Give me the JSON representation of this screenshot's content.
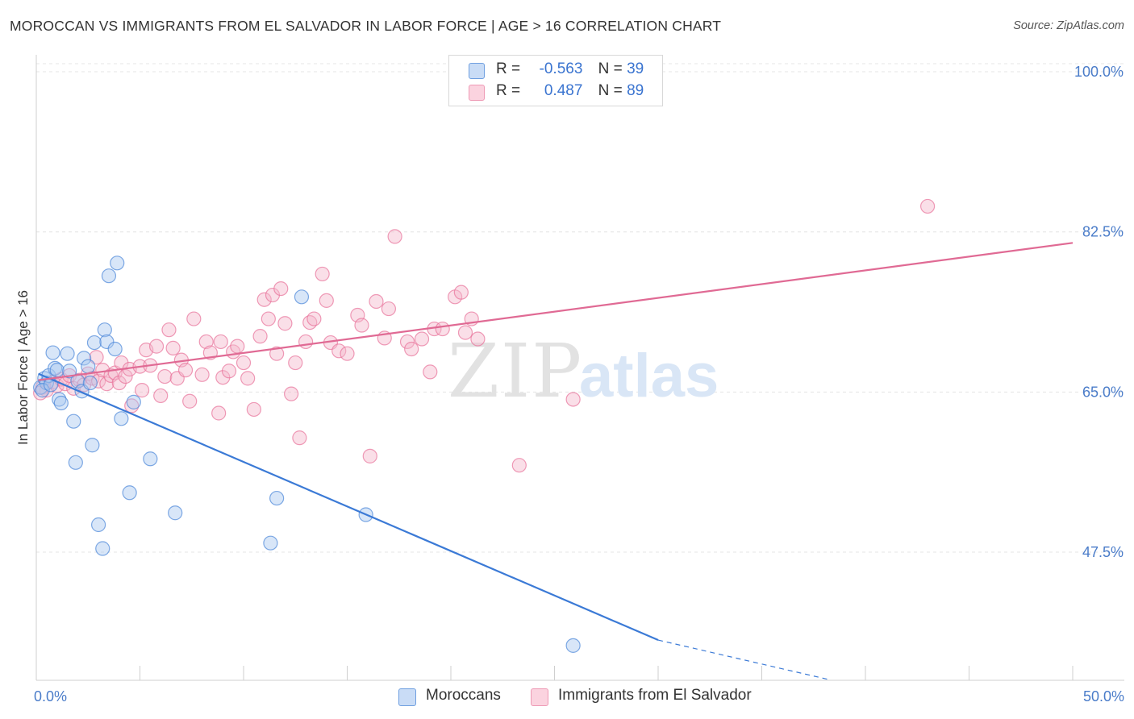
{
  "header": {
    "title": "MOROCCAN VS IMMIGRANTS FROM EL SALVADOR IN LABOR FORCE | AGE > 16 CORRELATION CHART",
    "source": "Source: ZipAtlas.com"
  },
  "watermark": {
    "zip": "ZIP",
    "atlas": "atlas"
  },
  "legend_stats": [
    {
      "r_label": "R =",
      "r_value": "-0.563",
      "n_label": "N =",
      "n_value": "39",
      "color": "#a9c8f0"
    },
    {
      "r_label": "R =",
      "r_value": "0.487",
      "n_label": "N =",
      "n_value": "89",
      "color": "#f5b8cb"
    }
  ],
  "chart_data": {
    "type": "scatter",
    "title": "MOROCCAN VS IMMIGRANTS FROM EL SALVADOR IN LABOR FORCE | AGE > 16 CORRELATION CHART",
    "ylabel": "In Labor Force | Age > 16",
    "xlabel": "",
    "xlim": [
      0,
      50
    ],
    "ylim": [
      33.5,
      101.5
    ],
    "x_tick_labels": [
      "0.0%",
      "50.0%"
    ],
    "y_tick_values": [
      47.5,
      65.0,
      82.5,
      100.0
    ],
    "y_tick_labels": [
      "47.5%",
      "65.0%",
      "82.5%",
      "100.0%"
    ],
    "grid": "horizontal dashed",
    "legend_position": "bottom",
    "series": [
      {
        "name": "Moroccans",
        "color": "#4a86d8",
        "fill": "#a9c8f0",
        "trend": {
          "x": [
            0.1,
            30.0
          ],
          "y": [
            67.0,
            37.9
          ],
          "dash_to": [
            37.9,
            33.6
          ]
        },
        "points": [
          [
            0.2,
            65.5
          ],
          [
            0.4,
            66.5
          ],
          [
            0.5,
            66.0
          ],
          [
            0.6,
            66.8
          ],
          [
            0.3,
            65.2
          ],
          [
            0.7,
            65.8
          ],
          [
            0.8,
            69.3
          ],
          [
            0.9,
            67.6
          ],
          [
            1.0,
            67.4
          ],
          [
            1.1,
            64.2
          ],
          [
            1.2,
            63.8
          ],
          [
            1.5,
            69.2
          ],
          [
            1.6,
            67.3
          ],
          [
            1.8,
            61.8
          ],
          [
            1.9,
            57.3
          ],
          [
            2.0,
            66.2
          ],
          [
            2.2,
            65.1
          ],
          [
            2.3,
            68.7
          ],
          [
            2.5,
            67.8
          ],
          [
            2.6,
            66.0
          ],
          [
            2.7,
            59.2
          ],
          [
            2.8,
            70.4
          ],
          [
            3.0,
            50.5
          ],
          [
            3.2,
            47.9
          ],
          [
            3.3,
            71.8
          ],
          [
            3.4,
            70.5
          ],
          [
            3.5,
            77.7
          ],
          [
            3.8,
            69.7
          ],
          [
            3.9,
            79.1
          ],
          [
            4.1,
            62.1
          ],
          [
            4.5,
            54.0
          ],
          [
            4.7,
            63.9
          ],
          [
            5.5,
            57.7
          ],
          [
            6.7,
            51.8
          ],
          [
            11.3,
            48.5
          ],
          [
            11.6,
            53.4
          ],
          [
            12.8,
            75.4
          ],
          [
            15.9,
            51.6
          ],
          [
            25.9,
            37.3
          ]
        ]
      },
      {
        "name": "Immigrants from El Salvador",
        "color": "#e8729a",
        "fill": "#f5b8cb",
        "trend": {
          "x": [
            0.1,
            50.0
          ],
          "y": [
            66.3,
            81.3
          ]
        },
        "points": [
          [
            0.3,
            65.5
          ],
          [
            0.5,
            65.2
          ],
          [
            0.8,
            66.1
          ],
          [
            1.0,
            65.7
          ],
          [
            1.2,
            66.4
          ],
          [
            1.4,
            65.9
          ],
          [
            1.6,
            66.8
          ],
          [
            1.8,
            65.4
          ],
          [
            2.1,
            66.3
          ],
          [
            2.3,
            65.8
          ],
          [
            2.5,
            67.0
          ],
          [
            2.7,
            66.5
          ],
          [
            2.9,
            68.8
          ],
          [
            3.0,
            66.2
          ],
          [
            3.2,
            67.4
          ],
          [
            3.4,
            65.9
          ],
          [
            3.6,
            66.8
          ],
          [
            3.8,
            67.1
          ],
          [
            4.0,
            66.0
          ],
          [
            4.1,
            68.2
          ],
          [
            4.3,
            66.7
          ],
          [
            4.5,
            67.5
          ],
          [
            4.6,
            63.5
          ],
          [
            5.0,
            67.8
          ],
          [
            5.1,
            65.2
          ],
          [
            5.3,
            69.6
          ],
          [
            5.5,
            67.9
          ],
          [
            5.8,
            70.0
          ],
          [
            6.0,
            64.6
          ],
          [
            6.2,
            66.7
          ],
          [
            6.4,
            71.8
          ],
          [
            6.6,
            69.8
          ],
          [
            6.8,
            66.5
          ],
          [
            7.0,
            68.5
          ],
          [
            7.2,
            67.4
          ],
          [
            7.4,
            64.0
          ],
          [
            7.6,
            73.0
          ],
          [
            8.0,
            66.9
          ],
          [
            8.2,
            70.5
          ],
          [
            8.4,
            69.3
          ],
          [
            8.8,
            62.7
          ],
          [
            8.9,
            70.5
          ],
          [
            9.0,
            66.6
          ],
          [
            9.3,
            67.3
          ],
          [
            9.5,
            69.4
          ],
          [
            9.7,
            70.0
          ],
          [
            10.0,
            68.2
          ],
          [
            10.2,
            66.5
          ],
          [
            10.5,
            63.1
          ],
          [
            10.8,
            71.1
          ],
          [
            11.0,
            75.1
          ],
          [
            11.2,
            73.0
          ],
          [
            11.4,
            75.6
          ],
          [
            11.6,
            69.2
          ],
          [
            11.8,
            76.3
          ],
          [
            12.0,
            72.5
          ],
          [
            12.3,
            64.8
          ],
          [
            12.5,
            68.2
          ],
          [
            12.7,
            60.0
          ],
          [
            13.0,
            70.5
          ],
          [
            13.2,
            72.6
          ],
          [
            13.4,
            73.0
          ],
          [
            13.8,
            77.9
          ],
          [
            14.0,
            75.0
          ],
          [
            14.2,
            70.4
          ],
          [
            14.6,
            69.5
          ],
          [
            15.0,
            69.2
          ],
          [
            15.5,
            73.4
          ],
          [
            15.7,
            72.3
          ],
          [
            16.1,
            58.0
          ],
          [
            16.4,
            74.9
          ],
          [
            16.8,
            70.9
          ],
          [
            17.0,
            74.1
          ],
          [
            17.3,
            82.0
          ],
          [
            17.9,
            70.5
          ],
          [
            18.1,
            69.7
          ],
          [
            18.6,
            70.8
          ],
          [
            19.0,
            67.2
          ],
          [
            19.2,
            71.9
          ],
          [
            19.6,
            71.9
          ],
          [
            20.2,
            75.4
          ],
          [
            20.5,
            75.9
          ],
          [
            20.7,
            71.5
          ],
          [
            21.0,
            73.0
          ],
          [
            21.3,
            70.8
          ],
          [
            23.3,
            57.0
          ],
          [
            25.9,
            64.2
          ],
          [
            43.0,
            85.3
          ],
          [
            0.2,
            64.9
          ]
        ]
      }
    ]
  }
}
